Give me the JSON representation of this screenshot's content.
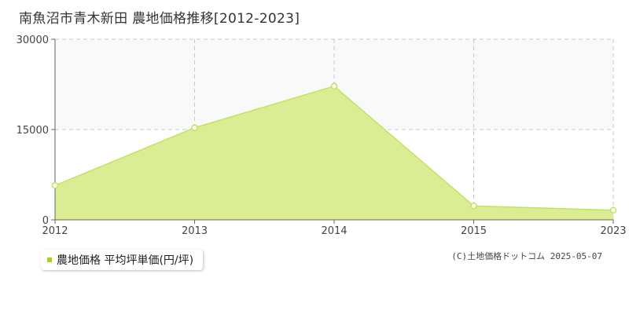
{
  "title": "南魚沼市青木新田 農地価格推移[2012-2023]",
  "legend": {
    "label": "農地価格 平均坪単価(円/坪)"
  },
  "credit": "(C)土地価格ドットコム 2025-05-07",
  "colors": {
    "fill": "#dbed94",
    "line": "#c2e35c",
    "marker": "#a3d41e",
    "band": "#faf9fa",
    "grid": "#c8c8c8",
    "axis": "#666666"
  },
  "chart_data": {
    "type": "area",
    "title": "南魚沼市青木新田 農地価格推移[2012-2023]",
    "x": [
      "2012",
      "2013",
      "2014",
      "2015",
      "2023"
    ],
    "series": [
      {
        "name": "農地価格 平均坪単価(円/坪)",
        "values": [
          5700,
          15300,
          22200,
          2300,
          1600
        ]
      }
    ],
    "y_ticks": [
      0,
      15000,
      30000
    ],
    "ylim": [
      0,
      30000
    ],
    "grid": true,
    "legend_position": "bottom-left"
  }
}
